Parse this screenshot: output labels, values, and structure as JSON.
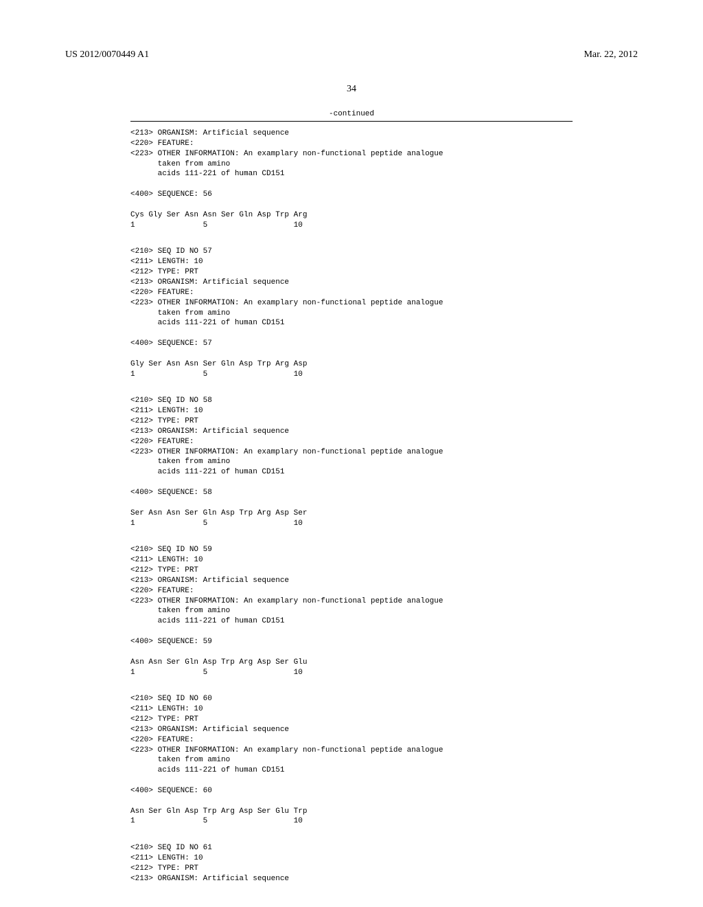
{
  "header": {
    "doc_number": "US 2012/0070449 A1",
    "doc_date": "Mar. 22, 2012",
    "page_number": "34"
  },
  "continued_label": "-continued",
  "blocks": {
    "block0": "<213> ORGANISM: Artificial sequence\n<220> FEATURE:\n<223> OTHER INFORMATION: An examplary non-functional peptide analogue\n      taken from amino\n      acids 111-221 of human CD151\n\n<400> SEQUENCE: 56\n\nCys Gly Ser Asn Asn Ser Gln Asp Trp Arg\n1               5                   10",
    "block1": "<210> SEQ ID NO 57\n<211> LENGTH: 10\n<212> TYPE: PRT\n<213> ORGANISM: Artificial sequence\n<220> FEATURE:\n<223> OTHER INFORMATION: An examplary non-functional peptide analogue\n      taken from amino\n      acids 111-221 of human CD151\n\n<400> SEQUENCE: 57\n\nGly Ser Asn Asn Ser Gln Asp Trp Arg Asp\n1               5                   10",
    "block2": "<210> SEQ ID NO 58\n<211> LENGTH: 10\n<212> TYPE: PRT\n<213> ORGANISM: Artificial sequence\n<220> FEATURE:\n<223> OTHER INFORMATION: An examplary non-functional peptide analogue\n      taken from amino\n      acids 111-221 of human CD151\n\n<400> SEQUENCE: 58\n\nSer Asn Asn Ser Gln Asp Trp Arg Asp Ser\n1               5                   10",
    "block3": "<210> SEQ ID NO 59\n<211> LENGTH: 10\n<212> TYPE: PRT\n<213> ORGANISM: Artificial sequence\n<220> FEATURE:\n<223> OTHER INFORMATION: An examplary non-functional peptide analogue\n      taken from amino\n      acids 111-221 of human CD151\n\n<400> SEQUENCE: 59\n\nAsn Asn Ser Gln Asp Trp Arg Asp Ser Glu\n1               5                   10",
    "block4": "<210> SEQ ID NO 60\n<211> LENGTH: 10\n<212> TYPE: PRT\n<213> ORGANISM: Artificial sequence\n<220> FEATURE:\n<223> OTHER INFORMATION: An examplary non-functional peptide analogue\n      taken from amino\n      acids 111-221 of human CD151\n\n<400> SEQUENCE: 60\n\nAsn Ser Gln Asp Trp Arg Asp Ser Glu Trp\n1               5                   10",
    "block5": "<210> SEQ ID NO 61\n<211> LENGTH: 10\n<212> TYPE: PRT\n<213> ORGANISM: Artificial sequence"
  }
}
